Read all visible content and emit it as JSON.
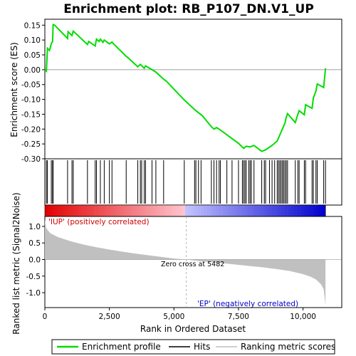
{
  "chart_data": {
    "type": "line",
    "title": "Enrichment plot: RB_P107_DN.V1_UP",
    "xlabel": "Rank in Ordered Dataset",
    "xlim": [
      0,
      11500
    ],
    "x_ticks": [
      0,
      2500,
      5000,
      7500,
      10000
    ],
    "x_tick_labels": [
      "0",
      "2,500",
      "5,000",
      "7,500",
      "10,000"
    ],
    "es_panel": {
      "ylabel": "Enrichment score (ES)",
      "ylim": [
        -0.3,
        0.17
      ],
      "y_ticks": [
        0.15,
        0.1,
        0.05,
        0.0,
        -0.05,
        -0.1,
        -0.15,
        -0.2,
        -0.25,
        -0.3
      ],
      "y_tick_labels": [
        "0.15",
        "0.10",
        "0.05",
        "0.00",
        "-0.05",
        "-0.10",
        "-0.15",
        "-0.20",
        "-0.25",
        "-0.30"
      ],
      "series": {
        "name": "Enrichment profile",
        "color": "#00dd00",
        "points": [
          [
            0,
            0.0
          ],
          [
            60,
            -0.005
          ],
          [
            100,
            0.072
          ],
          [
            180,
            0.065
          ],
          [
            250,
            0.088
          ],
          [
            300,
            0.095
          ],
          [
            320,
            0.152
          ],
          [
            380,
            0.15
          ],
          [
            880,
            0.105
          ],
          [
            900,
            0.128
          ],
          [
            1050,
            0.115
          ],
          [
            1100,
            0.13
          ],
          [
            1650,
            0.085
          ],
          [
            1700,
            0.095
          ],
          [
            1950,
            0.08
          ],
          [
            2000,
            0.103
          ],
          [
            2100,
            0.095
          ],
          [
            2150,
            0.103
          ],
          [
            2250,
            0.092
          ],
          [
            2300,
            0.1
          ],
          [
            2500,
            0.087
          ],
          [
            2600,
            0.093
          ],
          [
            2650,
            0.088
          ],
          [
            3150,
            0.045
          ],
          [
            3200,
            0.042
          ],
          [
            3600,
            0.01
          ],
          [
            3700,
            0.018
          ],
          [
            3850,
            0.005
          ],
          [
            3900,
            0.013
          ],
          [
            4150,
            0.0
          ],
          [
            4300,
            -0.008
          ],
          [
            4600,
            -0.032
          ],
          [
            4700,
            -0.038
          ],
          [
            5400,
            -0.102
          ],
          [
            5850,
            -0.138
          ],
          [
            6100,
            -0.155
          ],
          [
            6450,
            -0.192
          ],
          [
            6550,
            -0.2
          ],
          [
            6650,
            -0.195
          ],
          [
            6750,
            -0.2
          ],
          [
            7250,
            -0.232
          ],
          [
            7500,
            -0.248
          ],
          [
            7700,
            -0.265
          ],
          [
            7800,
            -0.258
          ],
          [
            7950,
            -0.26
          ],
          [
            8100,
            -0.255
          ],
          [
            8400,
            -0.275
          ],
          [
            8550,
            -0.27
          ],
          [
            8800,
            -0.255
          ],
          [
            9000,
            -0.24
          ],
          [
            9100,
            -0.22
          ],
          [
            9200,
            -0.2
          ],
          [
            9300,
            -0.18
          ],
          [
            9350,
            -0.16
          ],
          [
            9400,
            -0.148
          ],
          [
            9700,
            -0.178
          ],
          [
            9800,
            -0.15
          ],
          [
            9850,
            -0.138
          ],
          [
            10050,
            -0.152
          ],
          [
            10100,
            -0.118
          ],
          [
            10350,
            -0.13
          ],
          [
            10400,
            -0.095
          ],
          [
            10500,
            -0.072
          ],
          [
            10550,
            -0.048
          ],
          [
            10800,
            -0.06
          ],
          [
            10870,
            0.005
          ]
        ]
      }
    },
    "hits": {
      "name": "Hits",
      "ranks": [
        60,
        100,
        250,
        300,
        320,
        880,
        1050,
        1100,
        1650,
        1950,
        2000,
        2150,
        2300,
        2500,
        2600,
        3150,
        3600,
        3700,
        3750,
        3850,
        3900,
        4150,
        4300,
        4600,
        5400,
        5800,
        5850,
        5950,
        6050,
        6450,
        6550,
        6650,
        6750,
        6800,
        7050,
        7250,
        7500,
        7650,
        7700,
        7750,
        7800,
        7900,
        7950,
        8000,
        8100,
        8400,
        8500,
        8550,
        8700,
        8800,
        8900,
        9000,
        9050,
        9100,
        9150,
        9200,
        9250,
        9300,
        9350,
        9400,
        9700,
        9800,
        9850,
        10050,
        10100,
        10350,
        10400,
        10500,
        10550,
        10800,
        10870
      ]
    },
    "ranked_metric": {
      "name": "Ranking metric scores",
      "ylabel": "Ranked list metric (Signal2Noise)",
      "ylim": [
        -1.45,
        1.3
      ],
      "y_ticks": [
        1.0,
        0.5,
        0.0,
        -0.5,
        -1.0
      ],
      "y_tick_labels": [
        "1.0",
        "0.5",
        "0.0",
        "-0.5",
        "-1.0"
      ],
      "points": [
        [
          0,
          1.2
        ],
        [
          50,
          0.95
        ],
        [
          200,
          0.8
        ],
        [
          500,
          0.68
        ],
        [
          1000,
          0.55
        ],
        [
          1500,
          0.45
        ],
        [
          2000,
          0.37
        ],
        [
          2500,
          0.3
        ],
        [
          3000,
          0.24
        ],
        [
          3500,
          0.18
        ],
        [
          4000,
          0.13
        ],
        [
          4500,
          0.08
        ],
        [
          5000,
          0.03
        ],
        [
          5482,
          0.0
        ],
        [
          6000,
          -0.05
        ],
        [
          6500,
          -0.08
        ],
        [
          7000,
          -0.12
        ],
        [
          7500,
          -0.16
        ],
        [
          8000,
          -0.2
        ],
        [
          8500,
          -0.24
        ],
        [
          9000,
          -0.29
        ],
        [
          9500,
          -0.35
        ],
        [
          10000,
          -0.44
        ],
        [
          10300,
          -0.52
        ],
        [
          10500,
          -0.6
        ],
        [
          10700,
          -0.75
        ],
        [
          10800,
          -0.9
        ],
        [
          10870,
          -1.38
        ]
      ],
      "zero_cross_label": "Zero cross at 5482",
      "zero_cross_rank": 5482,
      "pos_label": "'IUP' (positively correlated)",
      "neg_label": "'EP' (negatively correlated)"
    },
    "legend": {
      "placement": "bottom",
      "items": [
        {
          "label": "Enrichment profile",
          "color": "#00dd00"
        },
        {
          "label": "Hits",
          "color": "#000000"
        },
        {
          "label": "Ranking metric scores",
          "color": "#c0c0c0"
        }
      ]
    },
    "colors": {
      "pos_label": "#cc0000",
      "neg_label": "#0000cc",
      "metric_fill": "#c0c0c0"
    }
  }
}
